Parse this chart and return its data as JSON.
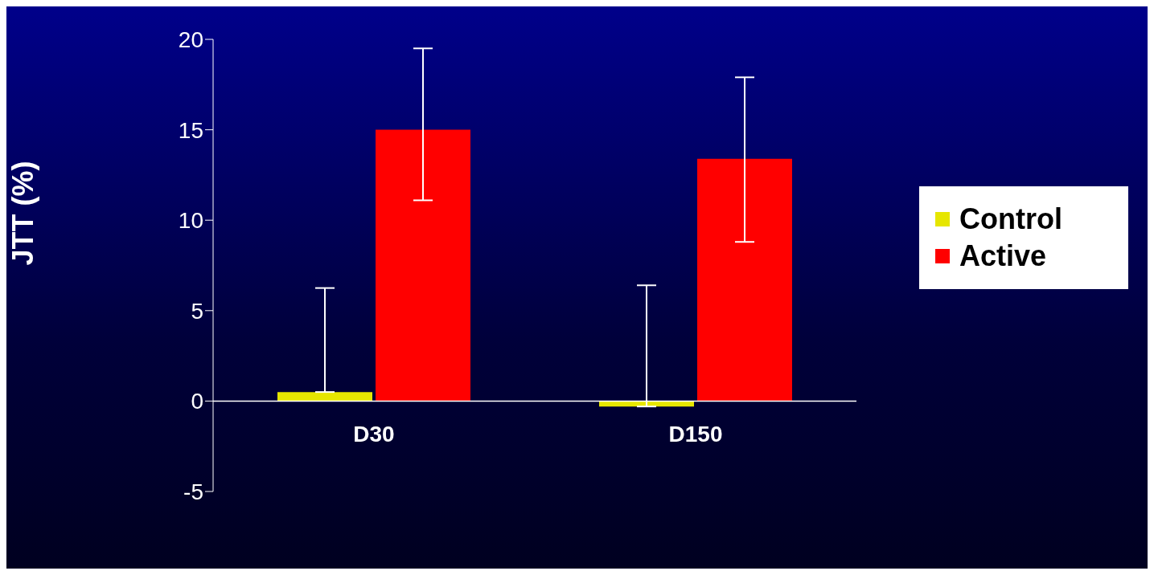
{
  "chart_data": {
    "type": "bar",
    "ylabel": "JTT (%)",
    "categories": [
      "D30",
      "D150"
    ],
    "series": [
      {
        "name": "Control",
        "color": "#e6e600",
        "values": [
          0.5,
          -0.3
        ],
        "errors": [
          [
            0.5,
            6.25
          ],
          [
            -0.3,
            6.4
          ]
        ]
      },
      {
        "name": "Active",
        "color": "#ff0000",
        "values": [
          15,
          13.4
        ],
        "errors": [
          [
            11.1,
            19.5
          ],
          [
            8.8,
            17.9
          ]
        ]
      }
    ],
    "ylim": [
      -5,
      20
    ],
    "yticks": [
      -5,
      0,
      5,
      10,
      15,
      20
    ],
    "grid": false,
    "legend": "right"
  }
}
